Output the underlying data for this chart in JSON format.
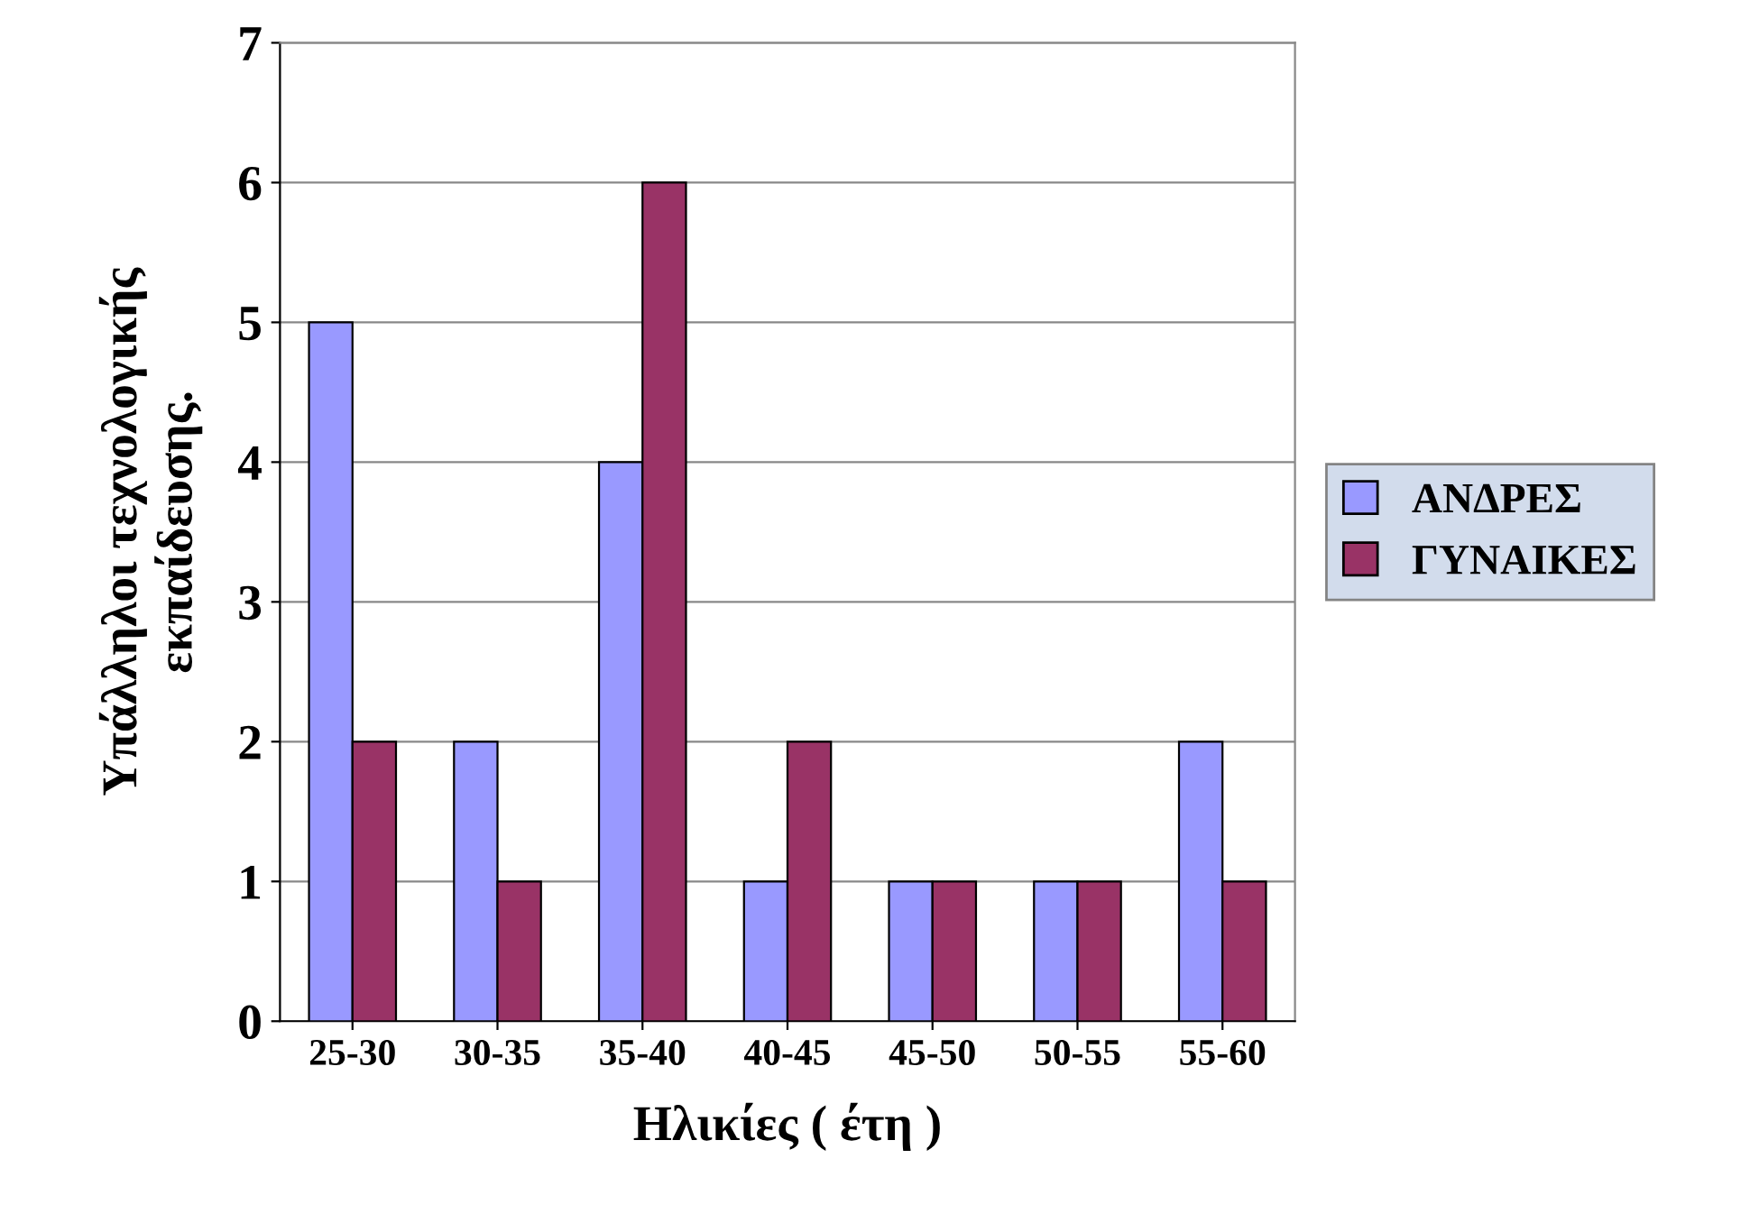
{
  "chart_data": {
    "type": "bar",
    "xlabel": "Ηλικίες ( έτη )",
    "ylabel": "Υπάλληλοι τεχνολογικής\nεκπαίδευσης.",
    "categories": [
      "25-30",
      "30-35",
      "35-40",
      "40-45",
      "45-50",
      "50-55",
      "55-60"
    ],
    "series": [
      {
        "name": "ΑΝΔΡΕΣ",
        "color": "#9999ff",
        "values": [
          5,
          2,
          4,
          1,
          1,
          1,
          2
        ]
      },
      {
        "name": "ΓΥΝΑΙΚΕΣ",
        "color": "#993366",
        "values": [
          2,
          1,
          6,
          2,
          1,
          1,
          1
        ]
      }
    ],
    "ylim": [
      0,
      7
    ],
    "yticks": [
      0,
      1,
      2,
      3,
      4,
      5,
      6,
      7
    ],
    "grid": "y",
    "legend": "right"
  }
}
